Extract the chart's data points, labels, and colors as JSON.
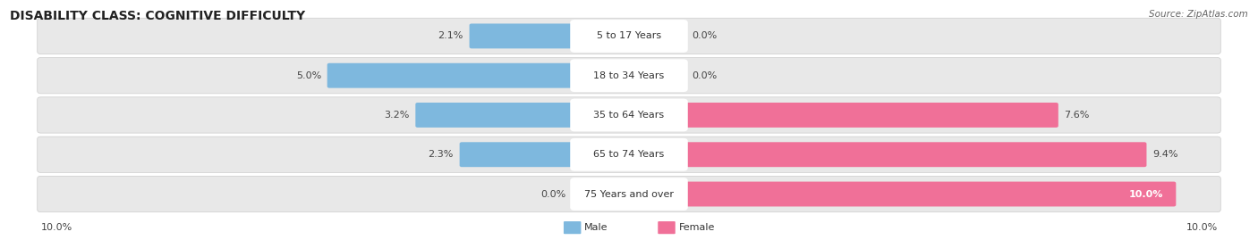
{
  "title": "DISABILITY CLASS: COGNITIVE DIFFICULTY",
  "source": "Source: ZipAtlas.com",
  "categories": [
    "5 to 17 Years",
    "18 to 34 Years",
    "35 to 64 Years",
    "65 to 74 Years",
    "75 Years and over"
  ],
  "male_values": [
    2.1,
    5.0,
    3.2,
    2.3,
    0.0
  ],
  "female_values": [
    0.0,
    0.0,
    7.6,
    9.4,
    10.0
  ],
  "max_value": 10.0,
  "male_color": "#7eb8de",
  "female_color": "#f07098",
  "male_color_light": "#b8d8ee",
  "female_color_light": "#f8aac0",
  "male_label": "Male",
  "female_label": "Female",
  "row_bg_color": "#e8e8e8",
  "label_bg_color": "#ffffff",
  "title_fontsize": 10,
  "label_fontsize": 8,
  "value_fontsize": 8,
  "source_fontsize": 7.5,
  "figwidth": 14.06,
  "figheight": 2.69,
  "dpi": 100
}
